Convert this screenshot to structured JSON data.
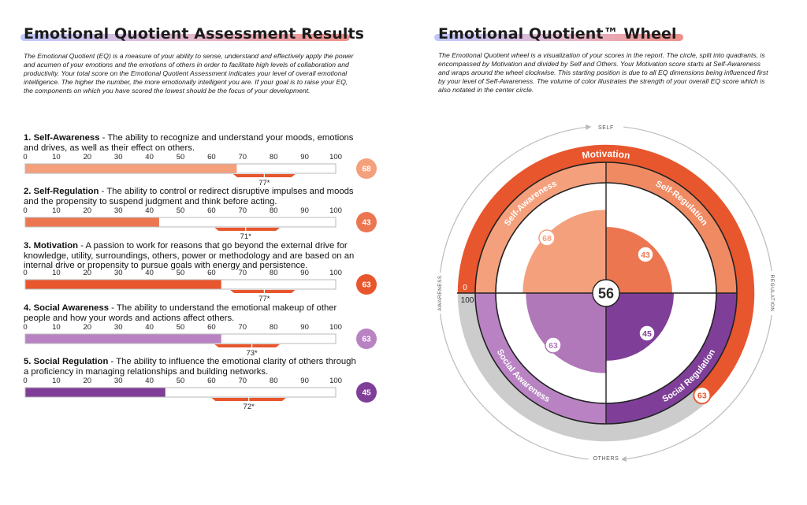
{
  "left_title": "Emotional Quotient Assessment Results",
  "left_intro": "The Emotional Quotient (EQ) is a measure of your ability to sense, understand and effectively apply the power and acumen of your emotions and the emotions of others in order to facilitate high levels of collaboration and productivity.  Your total score on the Emotional Quotient Assessment indicates your level of overall emotional intelligence.  The higher the number, the more emotionally intelligent you are.  If your goal is to raise your EQ, the components on which you have scored the lowest should be the focus of your development.",
  "right_title": "Emotional Quotient™ Wheel",
  "right_intro": "The Emotional Quotient wheel is a visualization of your scores in the report.  The circle, split into quadrants, is encompassed by Motivation and divided by Self and Others.  Your Motivation score starts at Self-Awareness and wraps around the wheel clockwise.  This starting position is due to all EQ dimensions being influenced first by your level of Self-Awareness.  The volume of color illustrates the strength of your overall EQ score which is also notated in the center circle.",
  "dimensions": [
    {
      "number": "1.",
      "name": "Self-Awareness",
      "description": " - The ability to recognize and understand your moods, emotions and drives, as well as their effect on others."
    },
    {
      "number": "2.",
      "name": "Self-Regulation",
      "description": " - The ability to control or redirect disruptive impulses and moods and the propensity to suspend judgment and think before acting."
    },
    {
      "number": "3.",
      "name": "Motivation",
      "description": " - A passion to work for reasons that go beyond the external drive for knowledge, utility, surroundings, others, power or methodology and are based on an internal drive or propensity to pursue goals with energy and persistence."
    },
    {
      "number": "4.",
      "name": "Social Awareness",
      "description": " - The ability to understand the emotional makeup of other people and how your words and actions affect others."
    },
    {
      "number": "5.",
      "name": "Social Regulation",
      "description": " - The ability to influence the emotional clarity of others through a proficiency in managing relationships and building networks."
    }
  ],
  "chart_data": [
    {
      "type": "bar",
      "orientation": "horizontal",
      "xlim": [
        0,
        100
      ],
      "ticks": [
        "0",
        "10",
        "20",
        "30",
        "40",
        "50",
        "60",
        "70",
        "80",
        "90",
        "100"
      ],
      "categories": [
        "Self-Awareness",
        "Self-Regulation",
        "Motivation",
        "Social Awareness",
        "Social Regulation"
      ],
      "values": [
        68,
        43,
        63,
        63,
        45
      ],
      "score_badges": [
        "68",
        "43",
        "63",
        "63",
        "45"
      ],
      "colors": [
        "#f4a07d",
        "#ec7650",
        "#e8562d",
        "#b983c3",
        "#7f3f98"
      ],
      "benchmark_ranges": [
        [
          67,
          87
        ],
        [
          61,
          82
        ],
        [
          66,
          87
        ],
        [
          61,
          82
        ],
        [
          60,
          84
        ]
      ],
      "benchmark_means": [
        77,
        71,
        77,
        73,
        72
      ],
      "benchmark_labels": [
        "77*",
        "71*",
        "77*",
        "73*",
        "72*"
      ],
      "benchmark_color": "#e8562d"
    },
    {
      "type": "radial",
      "center_score": "56",
      "ring_label": "Motivation",
      "ring_value": 63,
      "ring_start": "0",
      "ring_end": "100",
      "quadrants": [
        {
          "name": "Self-Awareness",
          "value": 68,
          "label": "68",
          "color": "#f4a07d",
          "band": "#f4a07d"
        },
        {
          "name": "Self-Regulation",
          "value": 43,
          "label": "43",
          "color": "#ec7650",
          "band": "#f08a63"
        },
        {
          "name": "Social Regulation",
          "value": 45,
          "label": "45",
          "color": "#7f3f98",
          "band": "#7f3f98"
        },
        {
          "name": "Social Awareness",
          "value": 63,
          "label": "63",
          "color": "#b077b9",
          "band": "#b983c3"
        }
      ],
      "axis_labels": {
        "top": "SELF",
        "bottom": "OTHERS",
        "left": "AWARENESS",
        "right": "REGULATION"
      },
      "colors": {
        "motivation": "#e8562d",
        "track": "#cccccc",
        "outline": "#222222"
      }
    }
  ]
}
